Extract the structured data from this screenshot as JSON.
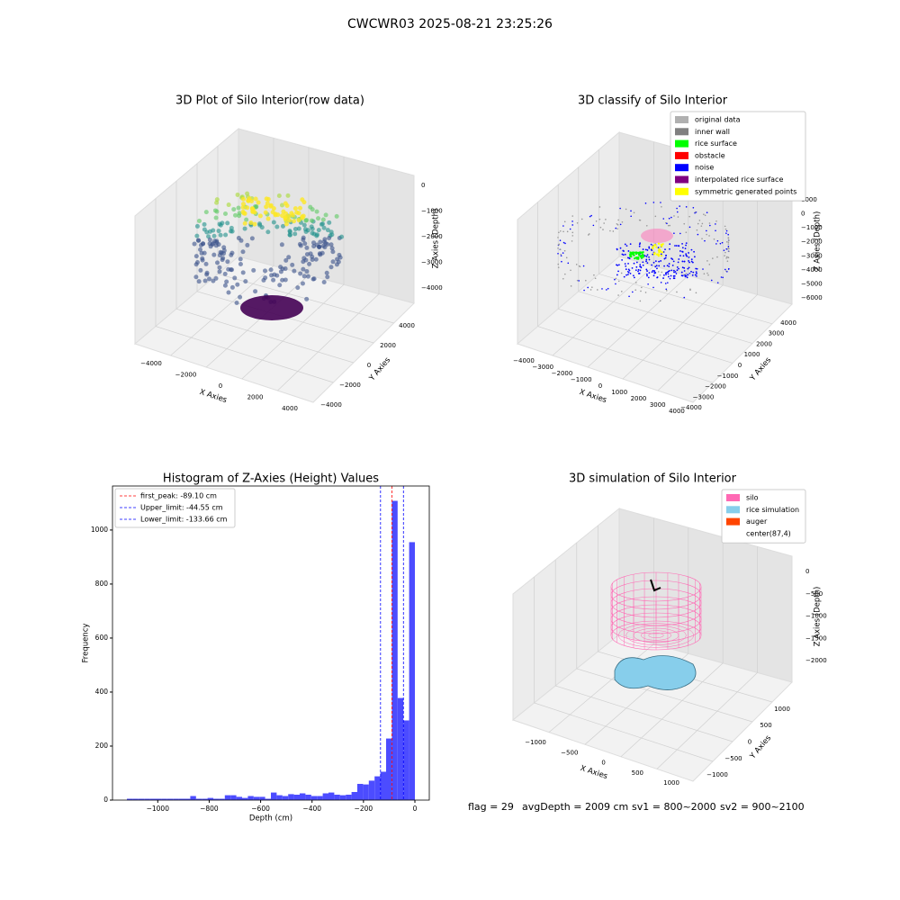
{
  "title": "CWCWR03 2025-08-21 23:25:26",
  "footer": [
    "flag = 29",
    "avgDepth = 2009 cm",
    "sv1 = 800~2000",
    "sv2 = 900~2100"
  ],
  "chart_data": [
    {
      "type": "scatter3d",
      "title": "3D Plot of Silo Interior(row data)",
      "xlabel": "X Axies",
      "ylabel": "Y Axies",
      "zlabel": "Z Axies (Depth)",
      "xlim": [
        -4700,
        4700
      ],
      "ylim": [
        -4700,
        4700
      ],
      "zlim": [
        -4500,
        300
      ],
      "xticks": [
        {
          "value": -4000,
          "label": "−4000"
        },
        {
          "value": -2000,
          "label": "−2000"
        },
        0,
        2000,
        4000
      ],
      "yticks": [
        {
          "value": -4000,
          "label": "−4000"
        },
        {
          "value": -2000,
          "label": "−2000"
        },
        0,
        2000,
        4000
      ],
      "zticks": [
        0,
        {
          "value": -1000,
          "label": "−1000"
        },
        {
          "value": -2000,
          "label": "−2000"
        },
        {
          "value": -3000,
          "label": "−3000"
        },
        {
          "value": -4000,
          "label": "−4000"
        }
      ]
    },
    {
      "type": "scatter3d",
      "title": "3D classify of Silo Interior",
      "xlabel": "X Axies",
      "ylabel": "Y Axies",
      "zlabel": "Z Axies (Depth)",
      "xlim": [
        -4500,
        4500
      ],
      "ylim": [
        -4500,
        4500
      ],
      "zlim": [
        -6500,
        1500
      ],
      "xticks": [
        {
          "value": -4000,
          "label": "−4000"
        },
        {
          "value": -3000,
          "label": "−3000"
        },
        {
          "value": -2000,
          "label": "−2000"
        },
        {
          "value": -1000,
          "label": "−1000"
        },
        0,
        1000,
        2000,
        3000,
        4000
      ],
      "yticks": [
        {
          "value": -4000,
          "label": "−4000"
        },
        {
          "value": -3000,
          "label": "−3000"
        },
        {
          "value": -2000,
          "label": "−2000"
        },
        {
          "value": -1000,
          "label": "−1000"
        },
        0,
        1000,
        2000,
        3000,
        4000
      ],
      "zticks": [
        1000,
        0,
        {
          "value": -1000,
          "label": "−1000"
        },
        {
          "value": -2000,
          "label": "−2000"
        },
        {
          "value": -3000,
          "label": "−3000"
        },
        {
          "value": -4000,
          "label": "−4000"
        },
        {
          "value": -5000,
          "label": "−5000"
        },
        {
          "value": -6000,
          "label": "−6000"
        }
      ],
      "legend_loc": "upper right",
      "legend": [
        {
          "name": "original data",
          "color": "#b0b0b0"
        },
        {
          "name": "inner wall",
          "color": "#808080"
        },
        {
          "name": "rice surface",
          "color": "#00ff00"
        },
        {
          "name": "obstacle",
          "color": "#ff0000"
        },
        {
          "name": "noise",
          "color": "#0000ff"
        },
        {
          "name": "interpolated rice surface",
          "color": "#800080"
        },
        {
          "name": "symmetric generated points",
          "color": "#ffff00"
        }
      ]
    },
    {
      "type": "histogram",
      "title": "Histogram of Z-Axies (Height) Values",
      "xlabel": "Depth (cm)",
      "ylabel": "Frequency",
      "color": "#4c4cff",
      "bins": [
        -1120,
        -1097.6,
        -1075.2,
        -1052.8,
        -1030.4,
        -1008,
        -985.6,
        -963.2,
        -940.8,
        -918.4,
        -896,
        -873.6,
        -851.2,
        -828.8,
        -806.4,
        -784,
        -761.6,
        -739.2,
        -716.8,
        -694.4,
        -672,
        -649.6,
        -627.2,
        -604.8,
        -582.4,
        -560,
        -537.6,
        -515.2,
        -492.8,
        -470.4,
        -448,
        -425.6,
        -403.2,
        -380.8,
        -358.4,
        -336,
        -313.6,
        -291.2,
        -268.8,
        -246.4,
        -224,
        -201.6,
        -179.2,
        -156.8,
        -134.4,
        -112,
        -89.6,
        -67.2,
        -44.8,
        -22.4,
        0
      ],
      "values": [
        5,
        5,
        5,
        5,
        5,
        5,
        5,
        5,
        5,
        5,
        5,
        15,
        5,
        5,
        8,
        5,
        5,
        18,
        18,
        12,
        8,
        15,
        12,
        12,
        5,
        28,
        18,
        15,
        22,
        20,
        25,
        20,
        15,
        15,
        25,
        28,
        20,
        18,
        20,
        30,
        60,
        58,
        72,
        88,
        105,
        228,
        1108,
        378,
        295,
        955
      ],
      "xlim": [
        -1176,
        56
      ],
      "ylim": [
        0,
        1163
      ],
      "xticks": [
        {
          "value": -1000,
          "label": "−1000"
        },
        {
          "value": -800,
          "label": "−800"
        },
        {
          "value": -600,
          "label": "−600"
        },
        {
          "value": -400,
          "label": "−400"
        },
        {
          "value": -200,
          "label": "−200"
        },
        0
      ],
      "yticks": [
        0,
        200,
        400,
        600,
        800,
        1000
      ],
      "legend_loc": "upper left",
      "vlines": [
        {
          "value": -89.1,
          "label": "first_peak: -89.10 cm",
          "color": "#ff0000"
        },
        {
          "value": -44.55,
          "label": "Upper_limit: -44.55 cm",
          "color": "#0000ff"
        },
        {
          "value": -133.66,
          "label": "Lower_limit: -133.66 cm",
          "color": "#0000ff"
        }
      ]
    },
    {
      "type": "surface3d",
      "title": "3D simulation of Silo Interior",
      "xlabel": "X Axies",
      "ylabel": "Y Axies",
      "zlabel": "Z Axies (Depth)",
      "xlim": [
        -1300,
        1300
      ],
      "ylim": [
        -1300,
        1300
      ],
      "zlim": [
        -2300,
        300
      ],
      "xticks": [
        {
          "value": -1000,
          "label": "−1000"
        },
        {
          "value": -500,
          "label": "−500"
        },
        0,
        500,
        1000
      ],
      "yticks": [
        {
          "value": -1000,
          "label": "−1000"
        },
        {
          "value": -500,
          "label": "−500"
        },
        0,
        500,
        1000
      ],
      "zticks": [
        0,
        {
          "value": -500,
          "label": "−500"
        },
        {
          "value": -1000,
          "label": "−1000"
        },
        {
          "value": -1500,
          "label": "−1500"
        },
        {
          "value": -2000,
          "label": "−2000"
        }
      ],
      "legend_loc": "upper right",
      "legend": [
        {
          "name": "silo",
          "color": "#ff69b4"
        },
        {
          "name": "rice simulation",
          "color": "#87ceeb"
        },
        {
          "name": "auger",
          "color": "#ff4500"
        },
        {
          "name": "center(87,4)",
          "color": "#ffffff"
        }
      ]
    }
  ]
}
